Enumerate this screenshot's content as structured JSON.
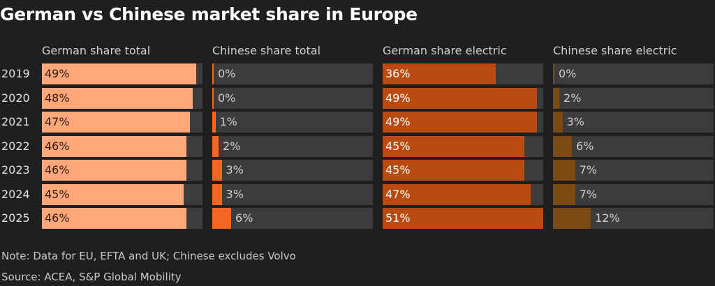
{
  "title": "German vs Chinese market share in Europe",
  "colors": {
    "background": "#1f1f1f",
    "track": "#3c3c3c",
    "german_total": "#ffa77a",
    "chinese_total": "#f26522",
    "german_electric": "#b84a12",
    "chinese_electric": "#7a4a12"
  },
  "chart_data": {
    "type": "bar",
    "orientation": "horizontal",
    "title": "German vs Chinese market share in Europe",
    "categories": [
      "2019",
      "2020",
      "2021",
      "2022",
      "2023",
      "2024",
      "2025"
    ],
    "series": [
      {
        "name": "German share total",
        "values": [
          49,
          48,
          47,
          46,
          46,
          45,
          46
        ],
        "labels": [
          "49%",
          "48%",
          "47%",
          "46%",
          "46%",
          "45%",
          "46%"
        ],
        "max": 51
      },
      {
        "name": "Chinese share total",
        "values": [
          0.3,
          0.4,
          1,
          2,
          3,
          3,
          6
        ],
        "labels": [
          "0%",
          "0%",
          "1%",
          "2%",
          "3%",
          "3%",
          "6%"
        ],
        "max": 51
      },
      {
        "name": "German share electric",
        "values": [
          36,
          49,
          49,
          45,
          45,
          47,
          51
        ],
        "labels": [
          "36%",
          "49%",
          "49%",
          "45%",
          "45%",
          "47%",
          "51%"
        ],
        "max": 51
      },
      {
        "name": "Chinese share electric",
        "values": [
          0.3,
          2,
          3,
          6,
          7,
          7,
          12
        ],
        "labels": [
          "0%",
          "2%",
          "3%",
          "6%",
          "7%",
          "7%",
          "12%"
        ],
        "max": 51
      }
    ],
    "ylim": [
      0,
      51
    ],
    "unit": "%"
  },
  "note": "Note: Data for EU, EFTA and UK; Chinese excludes Volvo",
  "source": "Source: ACEA, S&P Global Mobility"
}
